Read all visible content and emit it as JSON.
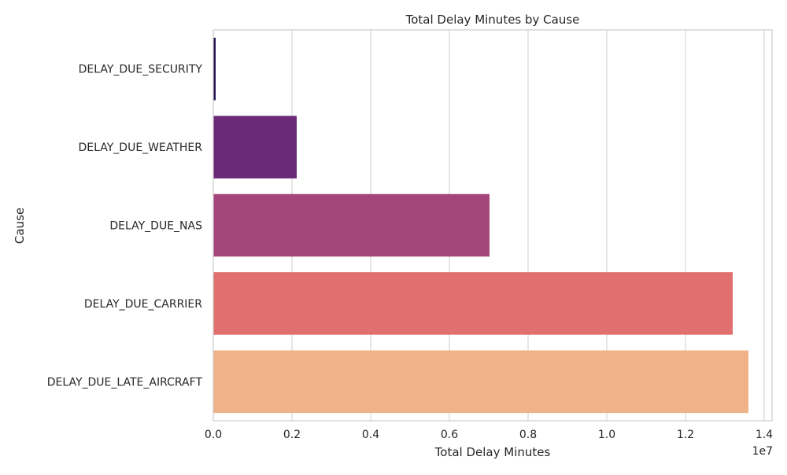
{
  "chart_data": {
    "type": "bar",
    "orientation": "horizontal",
    "title": "Total Delay Minutes by Cause",
    "xlabel": "Total Delay Minutes",
    "ylabel": "Cause",
    "x_offset_label": "1e7",
    "categories": [
      "DELAY_DUE_SECURITY",
      "DELAY_DUE_WEATHER",
      "DELAY_DUE_NAS",
      "DELAY_DUE_CARRIER",
      "DELAY_DUE_LATE_AIRCRAFT"
    ],
    "values": [
      60000,
      2120000,
      7020000,
      13200000,
      13600000
    ],
    "colors": [
      "#221150",
      "#6a2a75",
      "#a5467a",
      "#e06f6e",
      "#efb289"
    ],
    "xlim": [
      0,
      14200000
    ],
    "x_ticks": [
      0,
      2000000,
      4000000,
      6000000,
      8000000,
      10000000,
      12000000,
      14000000
    ],
    "x_tick_labels": [
      "0.0",
      "0.2",
      "0.4",
      "0.6",
      "0.8",
      "1.0",
      "1.2",
      "1.4"
    ],
    "grid": "vertical",
    "legend": "none"
  }
}
